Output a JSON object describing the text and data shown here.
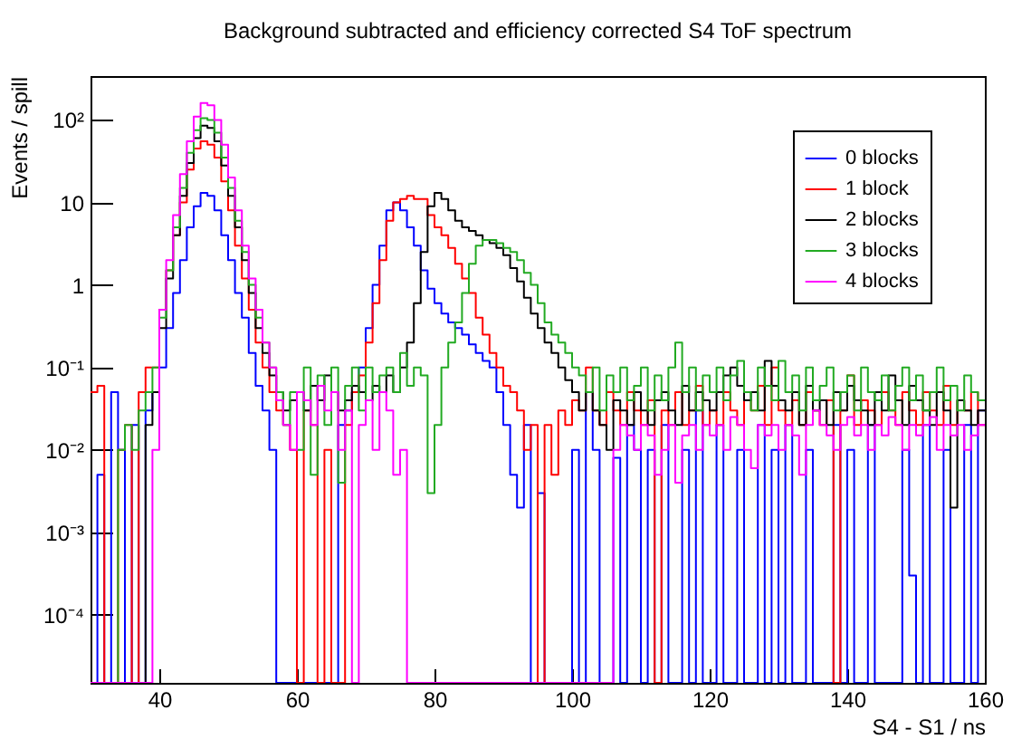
{
  "chart_data": {
    "type": "histogram",
    "title": "Background subtracted and efficiency corrected S4 ToF spectrum",
    "xlabel": "S4 - S1 / ns",
    "ylabel": "Events / spill",
    "bins": [
      30,
      31,
      32,
      33,
      34,
      35,
      36,
      37,
      38,
      39,
      40,
      41,
      42,
      43,
      44,
      45,
      46,
      47,
      48,
      49,
      50,
      51,
      52,
      53,
      54,
      55,
      56,
      57,
      58,
      59,
      60,
      61,
      62,
      63,
      64,
      65,
      66,
      67,
      68,
      69,
      70,
      71,
      72,
      73,
      74,
      75,
      76,
      77,
      78,
      79,
      80,
      81,
      82,
      83,
      84,
      85,
      86,
      87,
      88,
      89,
      90,
      91,
      92,
      93,
      94,
      95,
      96,
      97,
      98,
      99,
      100,
      101,
      102,
      103,
      104,
      105,
      106,
      107,
      108,
      109,
      110,
      111,
      112,
      113,
      114,
      115,
      116,
      117,
      118,
      119,
      120,
      121,
      122,
      123,
      124,
      125,
      126,
      127,
      128,
      129,
      130,
      131,
      132,
      133,
      134,
      135,
      136,
      137,
      138,
      139,
      140,
      141,
      142,
      143,
      144,
      145,
      146,
      147,
      148,
      149,
      150,
      151,
      152,
      153,
      154,
      155,
      156,
      157,
      158,
      159,
      160
    ],
    "series": [
      {
        "name": "0 blocks",
        "color": "#0000ff",
        "values": [
          null,
          0.005,
          null,
          0.05,
          0.01,
          null,
          0.02,
          null,
          0.03,
          0.05,
          0.1,
          0.3,
          0.8,
          2,
          5,
          9,
          13,
          12,
          8,
          4,
          2,
          0.8,
          0.4,
          0.15,
          0.06,
          0.03,
          0.01,
          null,
          null,
          null,
          null,
          null,
          null,
          null,
          null,
          null,
          0.02,
          0.03,
          0.05,
          0.1,
          0.3,
          1,
          3,
          8,
          10,
          8,
          5,
          3,
          1.5,
          0.9,
          0.6,
          0.45,
          0.35,
          0.3,
          0.25,
          0.19,
          0.15,
          0.12,
          0.1,
          0.05,
          0.02,
          0.005,
          0.002,
          0.02,
          null,
          0.003,
          null,
          null,
          null,
          null,
          0.01,
          null,
          0.05,
          0.01,
          null,
          null,
          0.008,
          null,
          0.02,
          0.01,
          null,
          0.01,
          null,
          0.02,
          null,
          null,
          0.01,
          null,
          0.03,
          null,
          null,
          0.02,
          null,
          null,
          0.01,
          null,
          null,
          0.02,
          null,
          0.01,
          null,
          0.02,
          null,
          null,
          0.01,
          null,
          null,
          null,
          0.02,
          null,
          0.01,
          null,
          null,
          0.02,
          null,
          null,
          null,
          null,
          0.01,
          0.0003,
          null,
          0.02,
          null,
          null,
          0.01,
          null,
          null,
          0.02,
          null,
          0.03
        ]
      },
      {
        "name": "1 block",
        "color": "#ff0000",
        "values": [
          0.05,
          0.06,
          null,
          null,
          0.01,
          0.02,
          null,
          0.05,
          0.1,
          0.1,
          0.5,
          1.5,
          4,
          10,
          25,
          45,
          55,
          50,
          35,
          18,
          8,
          3,
          1.2,
          0.5,
          0.2,
          0.1,
          0.05,
          0.03,
          0.02,
          0.01,
          null,
          0.03,
          0.02,
          null,
          0.01,
          null,
          null,
          0.02,
          0.05,
          0.08,
          0.2,
          0.6,
          2,
          6,
          10,
          11,
          12,
          11,
          11,
          7,
          5,
          4,
          2.8,
          1.8,
          1.2,
          0.8,
          0.4,
          0.25,
          0.15,
          0.1,
          0.06,
          0.05,
          0.03,
          0.01,
          0.02,
          null,
          0.02,
          0.005,
          0.03,
          0.02,
          0.04,
          0.03,
          0.1,
          0.03,
          0.02,
          0.05,
          0.03,
          0.02,
          0.05,
          0.03,
          0.02,
          0.04,
          null,
          0.03,
          0.02,
          0.05,
          0.02,
          0.03,
          0.06,
          0.02,
          0.03,
          0.02,
          0.05,
          0.03,
          0.02,
          0.04,
          0.03,
          0.06,
          0.02,
          0.1,
          0.03,
          0.02,
          0.04,
          0.02,
          0.05,
          0.03,
          0.02,
          0.04,
          null,
          0.03,
          0.08,
          0.02,
          0.04,
          0.03,
          0.02,
          0.05,
          0.03,
          0.02,
          0.05,
          0.03,
          0.02,
          0.05,
          0.03,
          0.02,
          0.06,
          0.02,
          0.04,
          0.03,
          0.05,
          0.02
        ]
      },
      {
        "name": "2 blocks",
        "color": "#000000",
        "values": [
          null,
          null,
          null,
          null,
          null,
          null,
          null,
          null,
          0.02,
          0.05,
          0.3,
          1.2,
          4,
          12,
          30,
          60,
          85,
          80,
          55,
          28,
          12,
          5,
          2,
          0.8,
          0.3,
          0.15,
          0.08,
          0.05,
          0.03,
          0.04,
          0.05,
          0.03,
          0.06,
          0.04,
          0.08,
          0.05,
          0.03,
          0.04,
          0.06,
          0.05,
          0.04,
          0.06,
          0.05,
          0.08,
          0.05,
          0.1,
          0.2,
          0.6,
          2.5,
          9,
          13,
          11,
          8,
          6,
          5,
          4.5,
          4,
          3.5,
          3.2,
          2.8,
          2.3,
          1.6,
          1.1,
          0.7,
          0.45,
          0.3,
          0.2,
          0.15,
          0.1,
          0.07,
          0.05,
          0.03,
          0.05,
          0.03,
          0.02,
          0.01,
          0.04,
          0.03,
          0.02,
          0.05,
          0.03,
          0.02,
          0.04,
          0.05,
          0.03,
          0.02,
          0.06,
          0.03,
          0.05,
          0.04,
          0.03,
          0.05,
          0.08,
          0.1,
          0.06,
          0.04,
          0.05,
          0.03,
          0.12,
          0.06,
          0.04,
          0.03,
          0.05,
          0.02,
          0.06,
          0.03,
          0.04,
          0.02,
          0.05,
          0.03,
          0.06,
          0.04,
          0.03,
          0.02,
          0.05,
          0.03,
          0.08,
          0.04,
          0.02,
          0.06,
          0.04,
          0.03,
          0.02,
          0.05,
          0.03,
          0.002,
          0.04,
          0.03,
          0.02,
          0.03
        ]
      },
      {
        "name": "3 blocks",
        "color": "#22aa22",
        "values": [
          null,
          null,
          null,
          null,
          0.01,
          0.02,
          0.01,
          0.03,
          0.05,
          0.1,
          0.4,
          1.5,
          5,
          15,
          40,
          75,
          105,
          100,
          70,
          35,
          15,
          6,
          2.5,
          1,
          0.4,
          0.2,
          0.1,
          0.05,
          0.02,
          0.05,
          0.01,
          0.1,
          0.005,
          0.08,
          0.02,
          0.1,
          0.004,
          0.06,
          0.1,
          0.03,
          0.1,
          0.05,
          0.08,
          0.1,
          0.05,
          0.15,
          0.06,
          0.1,
          0.08,
          0.003,
          0.02,
          0.1,
          0.2,
          0.35,
          0.8,
          1.8,
          3,
          3.5,
          3.5,
          3.2,
          2.8,
          2.5,
          2,
          1.4,
          1,
          0.6,
          0.35,
          0.25,
          0.2,
          0.15,
          0.1,
          0.08,
          0.05,
          0.1,
          0.03,
          0.08,
          0.05,
          0.1,
          0.04,
          0.06,
          0.1,
          0.03,
          0.08,
          0.04,
          0.1,
          0.2,
          0.05,
          0.1,
          0.03,
          0.08,
          0.05,
          0.1,
          0.04,
          0.08,
          0.12,
          0.05,
          0.03,
          0.1,
          0.06,
          0.04,
          0.12,
          0.05,
          0.08,
          0.03,
          0.1,
          0.04,
          0.06,
          0.1,
          0.03,
          0.05,
          0.08,
          0.03,
          0.1,
          0.05,
          0.04,
          0.08,
          0.03,
          0.06,
          0.1,
          0.04,
          0.08,
          0.03,
          0.05,
          0.1,
          0.04,
          0.06,
          0.03,
          0.08,
          0.05,
          0.04
        ]
      },
      {
        "name": "4 blocks",
        "color": "#ff00ff",
        "values": [
          null,
          null,
          null,
          null,
          null,
          null,
          null,
          null,
          null,
          0.01,
          0.5,
          2,
          7,
          22,
          55,
          110,
          160,
          150,
          100,
          50,
          20,
          8,
          3,
          1.2,
          0.5,
          0.2,
          0.1,
          0.04,
          0.02,
          0.01,
          0.05,
          0.04,
          0.02,
          0.06,
          0.03,
          0.05,
          0.01,
          0.03,
          null,
          0.02,
          0.04,
          0.01,
          0.05,
          0.03,
          0.005,
          0.01,
          null,
          null,
          null,
          null,
          null,
          null,
          null,
          null,
          null,
          null,
          null,
          null,
          null,
          null,
          null,
          null,
          null,
          null,
          null,
          null,
          null,
          null,
          null,
          null,
          null,
          null,
          null,
          null,
          null,
          null,
          0.01,
          0.02,
          0.015,
          0.01,
          0.02,
          0.015,
          0.005,
          0.01,
          0.02,
          0.004,
          0.015,
          0.02,
          0.01,
          0.02,
          0.015,
          0.02,
          0.01,
          0.025,
          0.02,
          0.01,
          0.006,
          0.02,
          0.015,
          0.02,
          0.01,
          0.02,
          0.015,
          0.005,
          0.02,
          0.03,
          0.02,
          0.015,
          0.01,
          0.02,
          0.025,
          0.015,
          0.02,
          0.01,
          0.02,
          0.015,
          0.025,
          0.02,
          0.01,
          0.02,
          0.015,
          0.02,
          0.025,
          0.01,
          0.02,
          0.015,
          0.02,
          0.01,
          0.015,
          0.02
        ]
      }
    ],
    "xlim": [
      30,
      160
    ],
    "xticks": [
      40,
      60,
      80,
      100,
      120,
      140,
      160
    ],
    "ylim": [
      1.5e-05,
      340
    ],
    "log": true,
    "yticks": [
      {
        "value": 0.0001,
        "label": "10⁻⁴"
      },
      {
        "value": 0.001,
        "label": "10⁻³"
      },
      {
        "value": 0.01,
        "label": "10⁻²"
      },
      {
        "value": 0.1,
        "label": "10⁻¹"
      },
      1,
      10,
      {
        "value": 100,
        "label": "10²"
      }
    ],
    "legend": "top right"
  }
}
